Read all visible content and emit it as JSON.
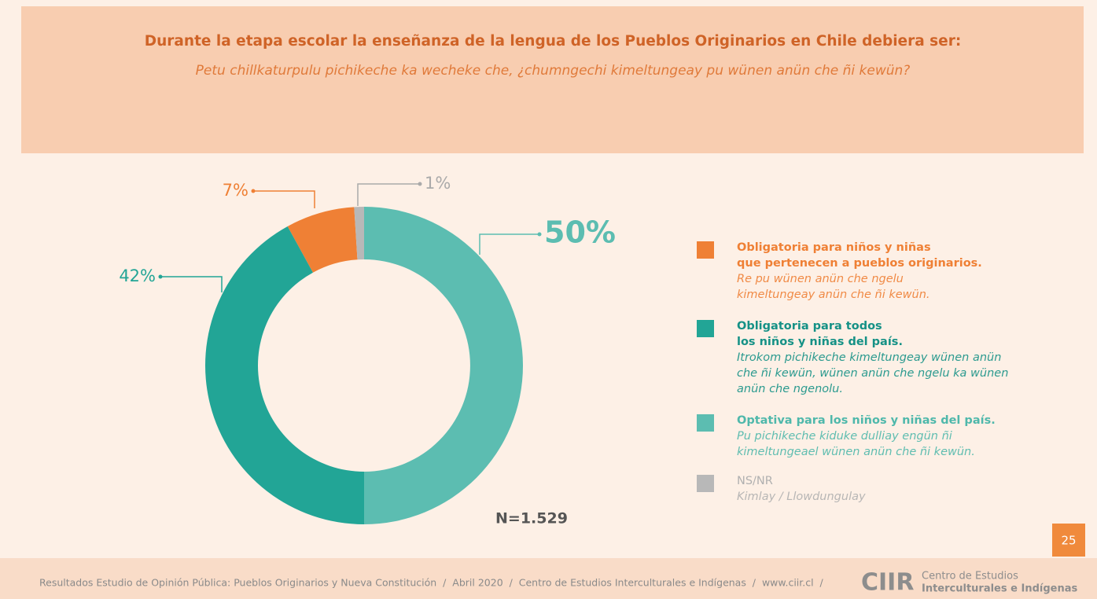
{
  "chart_data": {
    "type": "pie",
    "title": "Durante la etapa escolar la enseñanza de la lengua de los Pueblos Originarios en Chile debiera ser:",
    "subtitle": "Petu chillkaturpulu pichikeche ka wecheke che, ¿chumngechi kimeltungeay pu wünen anün che ñi kewün?",
    "categories": [
      "Obligatoria para niños y niñas\nque pertenecen a pueblos originarios.",
      "Obligatoria para todos\nlos niños y niñas del país.",
      "Optativa para los niños y niñas del país.",
      "NS/NR"
    ],
    "translations": [
      "Re pu wünen anün che ngelu\nkimeltungeay anün che ñi kewün.",
      "Itrokom pichikeche kimeltungeay wünen anün\nche ñi kewün, wünen anün che ngelu ka wünen\nanün che ngenolu.",
      "Pu pichikeche kiduke dulliay engün ñi\nkimeltungeael wünen anün che ñi kewün.",
      "Kimlay / Llowdungulay"
    ],
    "values": [
      7,
      42,
      50,
      1
    ],
    "value_labels": [
      "7%",
      "42%",
      "50%",
      "1%"
    ],
    "colors": [
      "#ef8035",
      "#22a596",
      "#5cbdb1",
      "#b8b8b8"
    ],
    "note": "N=1.529"
  },
  "footer": {
    "text": "Resultados Estudio de Opinión Pública: Pueblos Originarios y Nueva Constitución  /  Abril 2020  /  Centro de Estudios Interculturales e Indígenas  /  www.ciir.cl  /",
    "logo": "CIIR",
    "logo_line1": "Centro de Estudios",
    "logo_line2": "Interculturales e Indígenas",
    "page_number": "25"
  }
}
